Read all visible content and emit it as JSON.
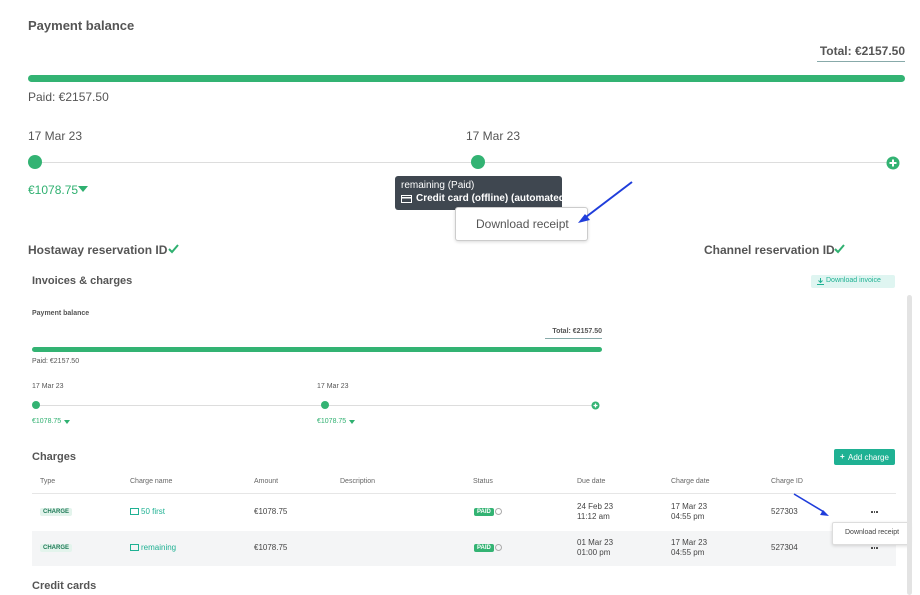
{
  "top": {
    "title": "Payment balance",
    "total": "Total: €2157.50",
    "paid": "Paid: €2157.50",
    "timeline": [
      {
        "date": "17 Mar 23",
        "amount": "€1078.75"
      },
      {
        "date": "17 Mar 23"
      }
    ],
    "tooltip": {
      "status": "remaining (Paid)",
      "method": "Credit card (offline) (automated)"
    },
    "download_receipt": "Download receipt",
    "hostaway_id": "Hostaway reservation ID",
    "channel_id": "Channel reservation ID"
  },
  "invoices": {
    "title": "Invoices & charges",
    "download_invoice": "Download invoice",
    "balance": {
      "title": "Payment balance",
      "total": "Total: €2157.50",
      "paid": "Paid: €2157.50",
      "timeline": [
        {
          "date": "17 Mar 23",
          "amount": "€1078.75"
        },
        {
          "date": "17 Mar 23",
          "amount": "€1078.75"
        }
      ]
    }
  },
  "charges": {
    "title": "Charges",
    "add_charge": "Add charge",
    "columns": [
      "Type",
      "Charge name",
      "Amount",
      "Description",
      "Status",
      "Due date",
      "Charge date",
      "Charge ID"
    ],
    "rows": [
      {
        "type": "CHARGE",
        "name": "50 first",
        "amount": "€1078.75",
        "status": "PAID",
        "due_date": "24 Feb 23",
        "due_time": "11:12 am",
        "charge_date": "17 Mar 23",
        "charge_time": "04:55 pm",
        "id": "527303"
      },
      {
        "type": "CHARGE",
        "name": "remaining",
        "amount": "€1078.75",
        "status": "PAID",
        "due_date": "01 Mar 23",
        "due_time": "01:00 pm",
        "charge_date": "17 Mar 23",
        "charge_time": "04:55 pm",
        "id": "527304"
      }
    ],
    "row_tooltip": "Download receipt"
  },
  "credit_cards": "Credit cards"
}
